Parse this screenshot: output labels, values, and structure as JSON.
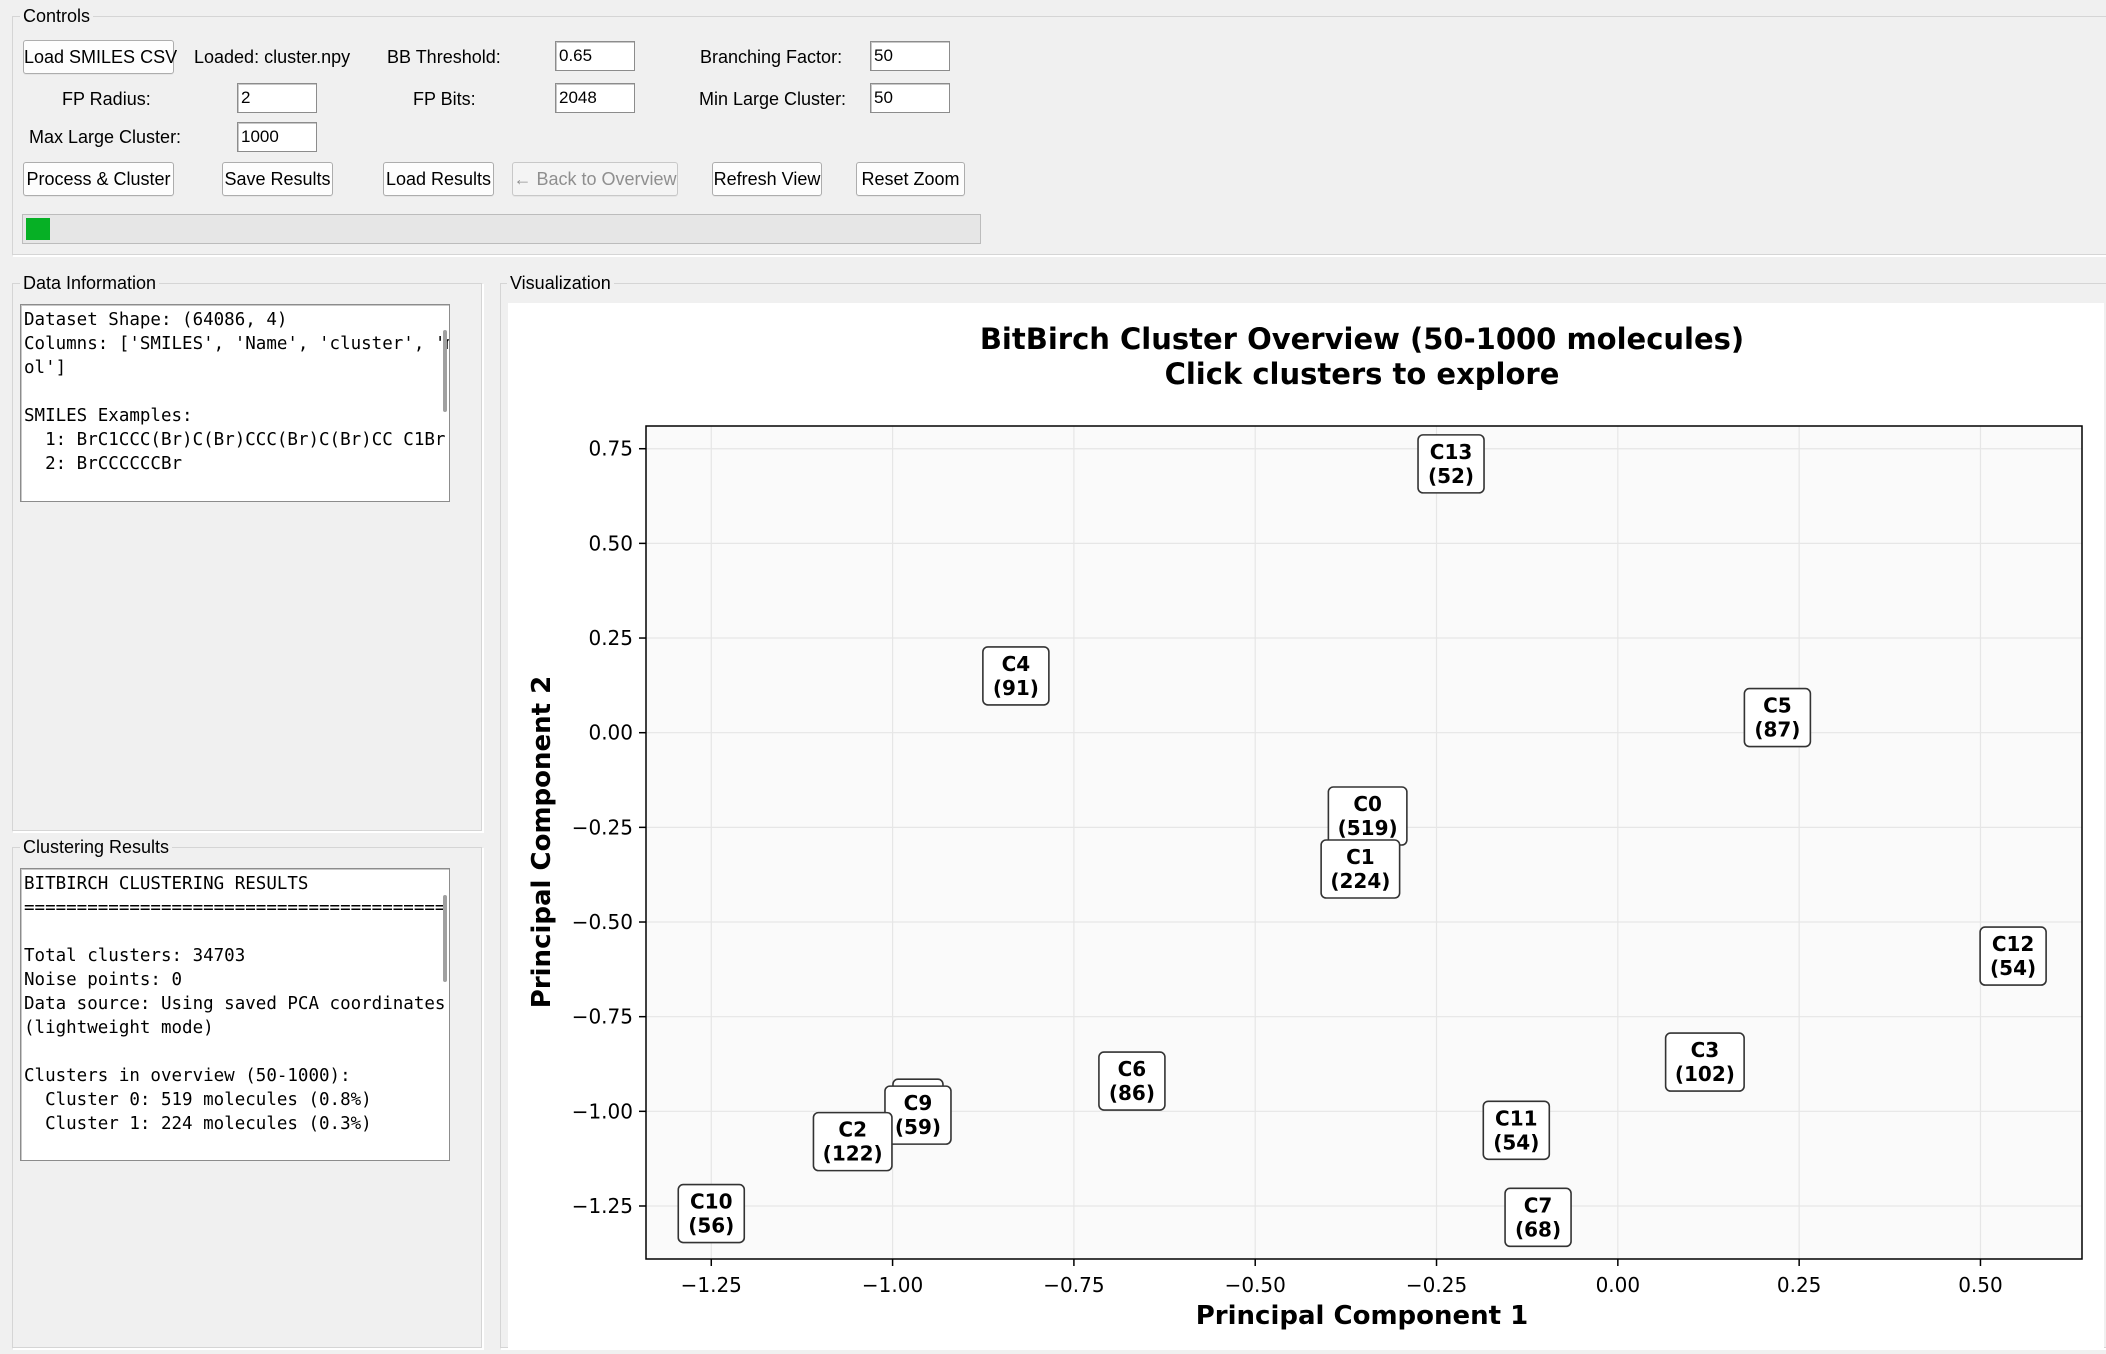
{
  "controls": {
    "title": "Controls",
    "load_csv_button": "Load SMILES CSV",
    "loaded_file": "Loaded: cluster.npy",
    "bb_threshold_label": "BB Threshold:",
    "bb_threshold_value": "0.65",
    "branching_factor_label": "Branching Factor:",
    "branching_factor_value": "50",
    "fp_radius_label": "FP Radius:",
    "fp_radius_value": "2",
    "fp_bits_label": "FP Bits:",
    "fp_bits_value": "2048",
    "min_large_label": "Min Large Cluster:",
    "min_large_value": "50",
    "max_large_label": "Max Large Cluster:",
    "max_large_value": "1000",
    "process_button": "Process & Cluster",
    "save_button": "Save Results",
    "load_results_button": "Load Results",
    "back_button": "← Back to Overview",
    "refresh_button": "Refresh View",
    "reset_zoom_button": "Reset Zoom",
    "progress_fraction": 0.025
  },
  "data_info": {
    "title": "Data Information",
    "text": "Dataset Shape: (64086, 4)\nColumns: ['SMILES', 'Name', 'cluster', 'mol']\n\nSMILES Examples:\n  1: BrC1CCC(Br)C(Br)CCC(Br)C(Br)CC C1Br\n  2: BrCCCCCCBr"
  },
  "results": {
    "title": "Clustering Results",
    "text": "BITBIRCH CLUSTERING RESULTS\n========================================\n\nTotal clusters: 34703\nNoise points: 0\nData source: Using saved PCA coordinates (lightweight mode)\n\nClusters in overview (50-1000):\n  Cluster 0: 519 molecules (0.8%)\n  Cluster 1: 224 molecules (0.3%)"
  },
  "visualization": {
    "title": "Visualization"
  },
  "chart_data": {
    "type": "scatter",
    "title": "BitBirch Cluster Overview (50-1000 molecules)",
    "subtitle": "Click clusters to explore",
    "xlabel": "Principal Component 1",
    "ylabel": "Principal Component 2",
    "xlim": [
      -1.34,
      0.64
    ],
    "ylim": [
      -1.39,
      0.81
    ],
    "xticks": [
      -1.25,
      -1.0,
      -0.75,
      -0.5,
      -0.25,
      0.0,
      0.25,
      0.5
    ],
    "xtick_labels": [
      "−1.25",
      "−1.00",
      "−0.75",
      "−0.50",
      "−0.25",
      "0.00",
      "0.25",
      "0.50"
    ],
    "yticks": [
      0.75,
      0.5,
      0.25,
      0.0,
      -0.25,
      -0.5,
      -0.75,
      -1.0,
      -1.25
    ],
    "ytick_labels": [
      "0.75",
      "0.50",
      "0.25",
      "0.00",
      "−0.25",
      "−0.50",
      "−0.75",
      "−1.00",
      "−1.25"
    ],
    "grid": true,
    "points": [
      {
        "label": "C13",
        "count": "(52)",
        "x": -0.23,
        "y": 0.71
      },
      {
        "label": "C4",
        "count": "(91)",
        "x": -0.83,
        "y": 0.15
      },
      {
        "label": "C5",
        "count": "(87)",
        "x": 0.22,
        "y": 0.04
      },
      {
        "label": "C0",
        "count": "(519)",
        "x": -0.345,
        "y": -0.22
      },
      {
        "label": "C1",
        "count": "(224)",
        "x": -0.355,
        "y": -0.36
      },
      {
        "label": "C12",
        "count": "(54)",
        "x": 0.545,
        "y": -0.59
      },
      {
        "label": "C3",
        "count": "(102)",
        "x": 0.12,
        "y": -0.87
      },
      {
        "label": "C6",
        "count": "(86)",
        "x": -0.67,
        "y": -0.92
      },
      {
        "label": "C8",
        "count": "",
        "x": -0.965,
        "y": -0.96
      },
      {
        "label": "C9",
        "count": "(59)",
        "x": -0.965,
        "y": -1.01
      },
      {
        "label": "C2",
        "count": "(122)",
        "x": -1.055,
        "y": -1.08
      },
      {
        "label": "C11",
        "count": "(54)",
        "x": -0.14,
        "y": -1.05
      },
      {
        "label": "C10",
        "count": "(56)",
        "x": -1.25,
        "y": -1.27
      },
      {
        "label": "C7",
        "count": "(68)",
        "x": -0.11,
        "y": -1.28
      }
    ]
  }
}
